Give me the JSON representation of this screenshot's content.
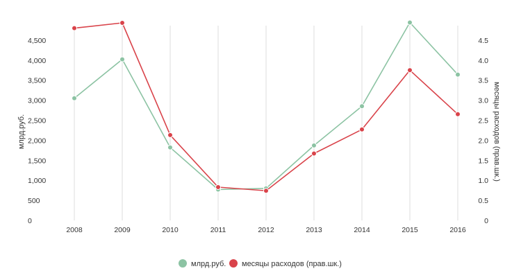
{
  "chart_data": {
    "type": "line",
    "categories": [
      "2008",
      "2009",
      "2010",
      "2011",
      "2012",
      "2013",
      "2014",
      "2015",
      "2016"
    ],
    "series": [
      {
        "name": "млрд.руб.",
        "axis": "left",
        "color": "#8cc3a3",
        "values": [
          3050,
          4020,
          1820,
          770,
          800,
          1870,
          2850,
          4940,
          3640
        ]
      },
      {
        "name": "месяцы расходов (прав.шк.)",
        "axis": "right",
        "color": "#d9434a",
        "values": [
          4.8,
          4.93,
          2.13,
          0.83,
          0.74,
          1.67,
          2.27,
          3.75,
          2.65
        ]
      }
    ],
    "ylabel": "млрд.руб.",
    "ylabel_right": "месяцы расходов (прав.шк.)",
    "ylim": [
      0,
      5000
    ],
    "ylim_right": [
      0,
      5
    ],
    "yticks": [
      "0",
      "500",
      "1,000",
      "1,500",
      "2,000",
      "2,500",
      "3,000",
      "3,500",
      "4,000",
      "4,500"
    ],
    "yticks_right": [
      "0",
      "0.5",
      "1.0",
      "1.5",
      "2.0",
      "2.5",
      "3.0",
      "3.5",
      "4.0",
      "4.5"
    ],
    "grid": "vertical",
    "legend_position": "bottom-center"
  }
}
